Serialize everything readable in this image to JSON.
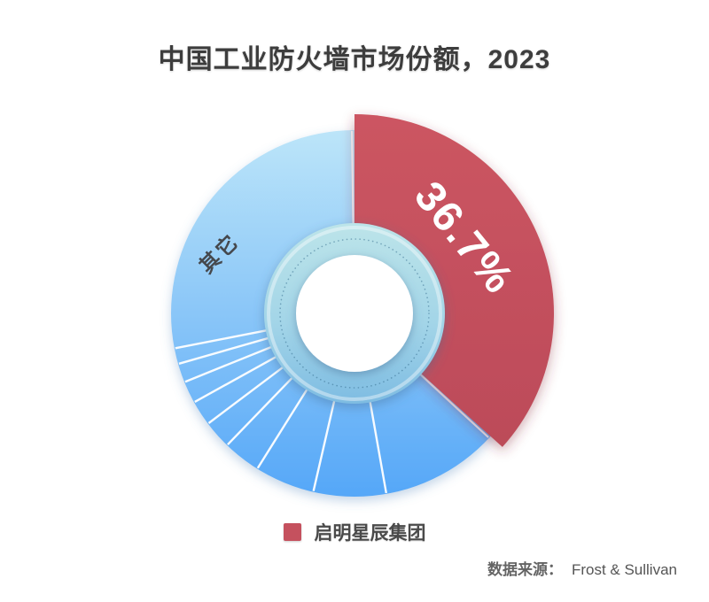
{
  "header": {
    "title": "中国工业防火墙市场份额，2023"
  },
  "chart_data": {
    "type": "pie",
    "subtype": "donut",
    "title": "中国工业防火墙市场份额，2023",
    "unit": "%",
    "start_angle_deg": 0,
    "clockwise": true,
    "slices": [
      {
        "name": "启明星辰集团",
        "value": 36.7,
        "label": "36.7%",
        "color": "#c5515e",
        "emphasized": true
      },
      {
        "name": "其它",
        "value": 63.3,
        "label": "其它",
        "color_top": "#bce5f9",
        "color_bottom": "#55a7f8",
        "sub_divider_angles_deg": [
          170,
          193,
          212,
          224,
          233,
          241,
          248,
          254,
          259
        ]
      }
    ],
    "legend": {
      "position": "bottom",
      "entries": [
        {
          "label": "启明星辰集团",
          "color": "#c5515e"
        }
      ]
    },
    "colors": {
      "label_on_red": "#ffffff",
      "label_on_blue": "#45484d",
      "hub_top": "#bce4e9",
      "hub_bottom": "#7ebce2",
      "center": "#ffffff",
      "title_text": "#3d3d3d"
    }
  },
  "footer": {
    "source_label": "数据来源：",
    "source_value": "Frost & Sullivan"
  }
}
